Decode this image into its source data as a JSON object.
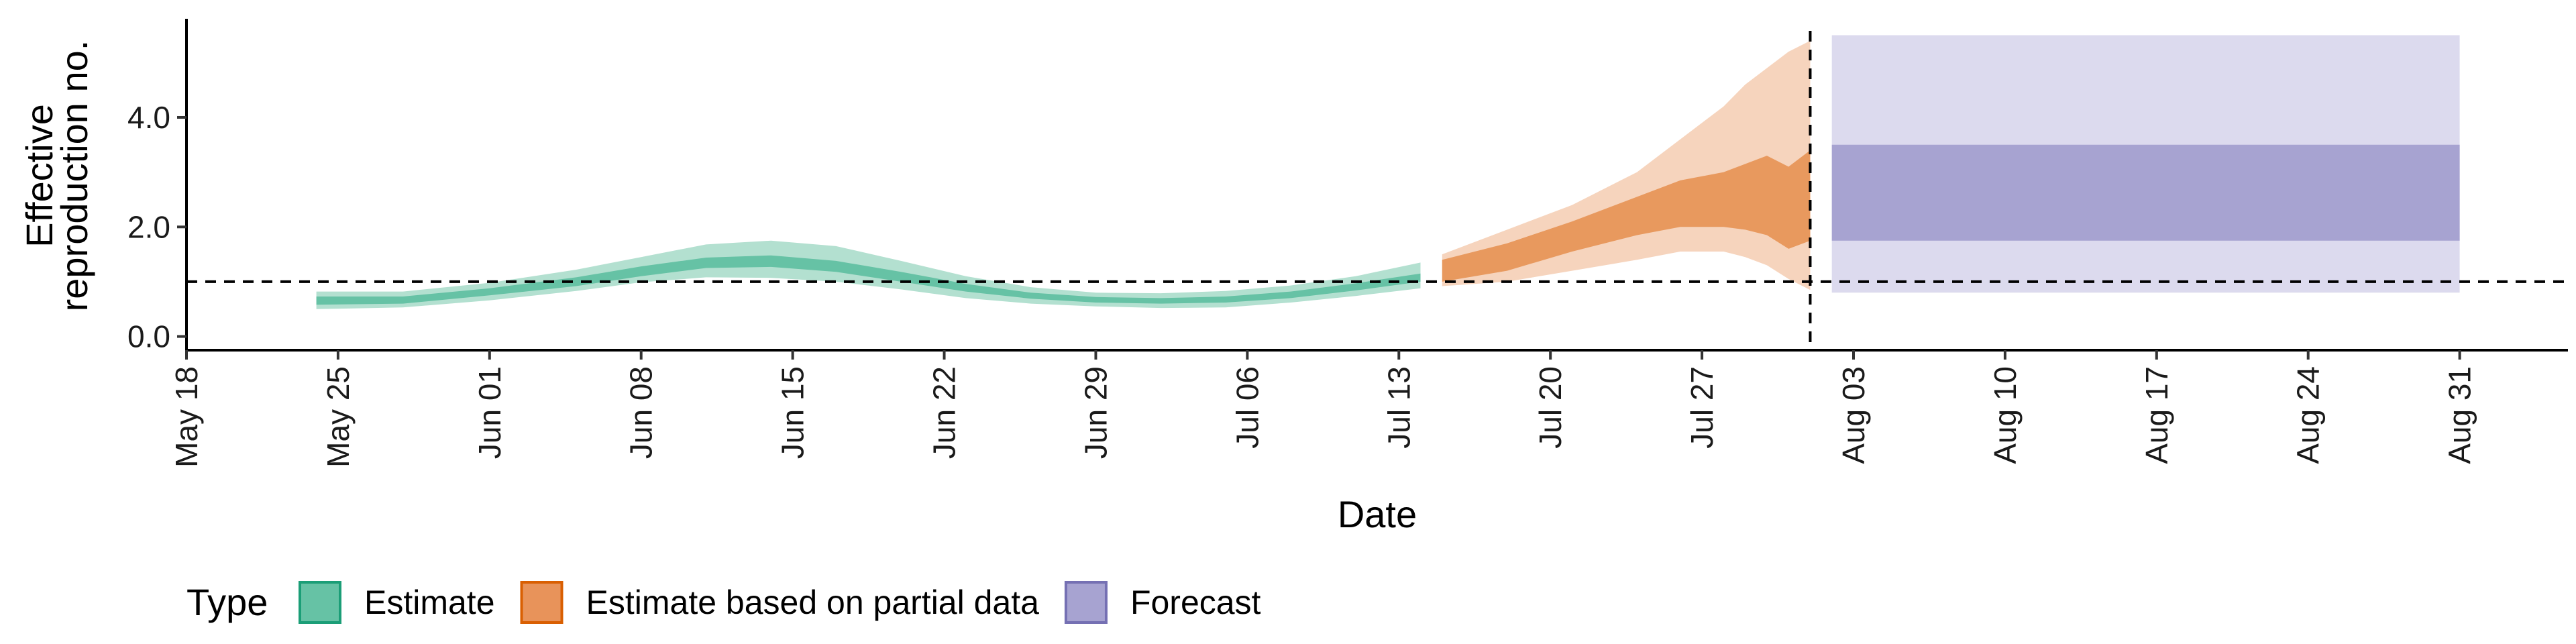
{
  "chart_data": {
    "type": "area",
    "xlabel": "Date",
    "ylabel_lines": [
      "Effective",
      "reproduction no."
    ],
    "x_ticks": [
      "May 18",
      "May 25",
      "Jun 01",
      "Jun 08",
      "Jun 15",
      "Jun 22",
      "Jun 29",
      "Jul 06",
      "Jul 13",
      "Jul 20",
      "Jul 27",
      "Aug 03",
      "Aug 10",
      "Aug 17",
      "Aug 24",
      "Aug 31"
    ],
    "y_ticks": [
      "0.0",
      "2.0",
      "4.0"
    ],
    "x_range": [
      "2020-05-18",
      "2020-09-05"
    ],
    "y_range": [
      -0.25,
      5.8
    ],
    "reference_line_y": 1.0,
    "forecast_start": "2020-08-01",
    "legend": {
      "title": "Type",
      "placement": "bottom",
      "items": [
        {
          "label": "Estimate",
          "color": "#66c2a5",
          "border": "#1b9e77"
        },
        {
          "label": "Estimate based on partial data",
          "color": "#e8935a",
          "border": "#d95f02"
        },
        {
          "label": "Forecast",
          "color": "#a7a3d1",
          "border": "#7570b3"
        }
      ]
    },
    "colors": {
      "estimate_outer": "#b3e0d0",
      "estimate_inner": "#66c2a5",
      "partial_outer": "#f6d4bd",
      "partial_inner": "#e8995e",
      "forecast_outer": "#dcdaee",
      "forecast_inner": "#a7a3d1"
    },
    "series": [
      {
        "name": "Estimate",
        "x": [
          "2020-05-24",
          "2020-05-28",
          "2020-06-01",
          "2020-06-05",
          "2020-06-08",
          "2020-06-11",
          "2020-06-14",
          "2020-06-17",
          "2020-06-20",
          "2020-06-23",
          "2020-06-26",
          "2020-06-29",
          "2020-07-02",
          "2020-07-05",
          "2020-07-08",
          "2020-07-11",
          "2020-07-14"
        ],
        "outer_lower": [
          0.5,
          0.53,
          0.66,
          0.83,
          0.99,
          1.08,
          1.07,
          1.0,
          0.86,
          0.7,
          0.6,
          0.55,
          0.52,
          0.53,
          0.62,
          0.74,
          0.88
        ],
        "outer_upper": [
          0.82,
          0.82,
          0.98,
          1.22,
          1.45,
          1.68,
          1.75,
          1.65,
          1.38,
          1.1,
          0.9,
          0.8,
          0.79,
          0.83,
          0.93,
          1.1,
          1.35
        ],
        "inner_lower": [
          0.58,
          0.6,
          0.75,
          0.92,
          1.1,
          1.25,
          1.27,
          1.18,
          1.0,
          0.82,
          0.69,
          0.62,
          0.6,
          0.62,
          0.7,
          0.84,
          1.0
        ],
        "inner_upper": [
          0.73,
          0.73,
          0.88,
          1.08,
          1.28,
          1.44,
          1.48,
          1.38,
          1.18,
          0.96,
          0.8,
          0.72,
          0.7,
          0.73,
          0.82,
          0.97,
          1.15
        ]
      },
      {
        "name": "Estimate based on partial data",
        "x": [
          "2020-07-15",
          "2020-07-18",
          "2020-07-21",
          "2020-07-24",
          "2020-07-26",
          "2020-07-28",
          "2020-07-29",
          "2020-07-30",
          "2020-07-31",
          "2020-08-01"
        ],
        "outer_lower": [
          0.92,
          1.0,
          1.2,
          1.4,
          1.55,
          1.55,
          1.45,
          1.3,
          1.05,
          0.85
        ],
        "outer_upper": [
          1.5,
          1.95,
          2.4,
          3.0,
          3.6,
          4.2,
          4.6,
          4.9,
          5.2,
          5.4
        ],
        "inner_lower": [
          1.0,
          1.2,
          1.55,
          1.85,
          2.0,
          2.0,
          1.95,
          1.85,
          1.6,
          1.75
        ],
        "inner_upper": [
          1.4,
          1.7,
          2.1,
          2.55,
          2.85,
          3.0,
          3.15,
          3.3,
          3.1,
          3.4
        ]
      },
      {
        "name": "Forecast",
        "x": [
          "2020-08-02",
          "2020-08-31"
        ],
        "outer_lower": [
          0.8,
          0.8
        ],
        "outer_upper": [
          5.5,
          5.5
        ],
        "inner_lower": [
          1.75,
          1.75
        ],
        "inner_upper": [
          3.5,
          3.5
        ]
      }
    ]
  }
}
